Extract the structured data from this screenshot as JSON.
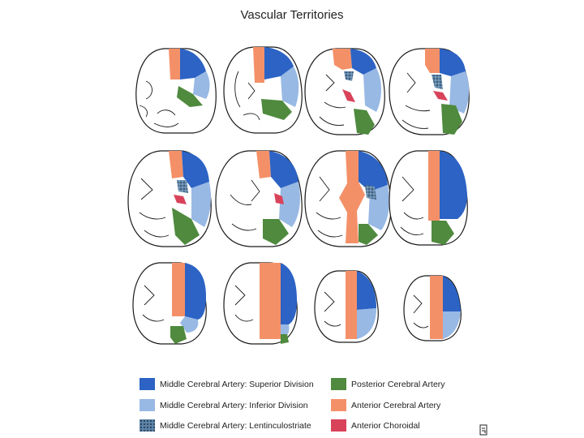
{
  "title": "Vascular Territories",
  "colors": {
    "mca_superior": "#2c63c4",
    "mca_inferior": "#98b9e4",
    "mca_lenticulostriate": "#5d83a6",
    "pca": "#4f8a3e",
    "aca": "#f49068",
    "anterior_choroidal": "#d9435a",
    "outline": "#1a1a1a"
  },
  "legend": [
    {
      "key": "mca_superior",
      "label": "Middle Cerebral Artery: Superior Division"
    },
    {
      "key": "mca_inferior",
      "label": "Middle Cerebral Artery: Inferior Division"
    },
    {
      "key": "mca_lenticulostriate",
      "label": "Middle Cerebral Artery: Lentinculostriate"
    },
    {
      "key": "pca",
      "label": "Posterior Cerebral Artery"
    },
    {
      "key": "aca",
      "label": "Anterior Cerebral Artery"
    },
    {
      "key": "anterior_choroidal",
      "label": "Anterior Choroidal"
    }
  ],
  "slice_rows": [
    4,
    4,
    4
  ]
}
